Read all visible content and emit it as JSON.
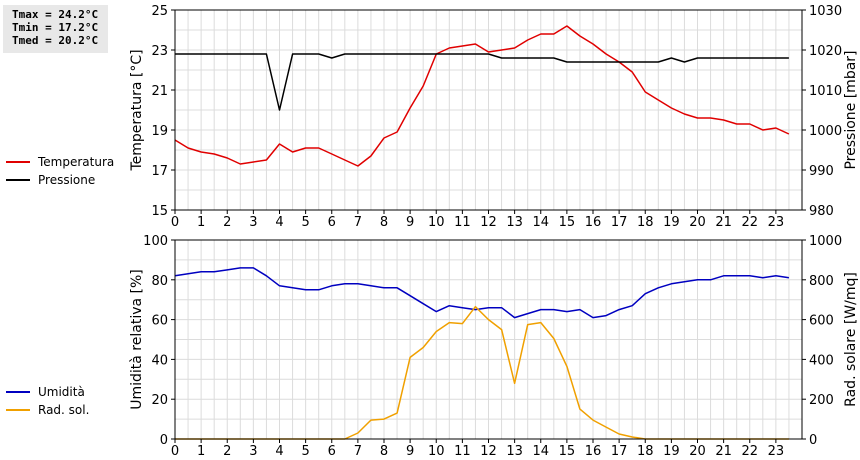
{
  "stats": {
    "tmax": "Tmax = 24.2°C",
    "tmin": "Tmin = 17.2°C",
    "tmed": "Tmed = 20.2°C"
  },
  "chart_data": [
    {
      "type": "line",
      "x_ticks": [
        "0",
        "1",
        "2",
        "3",
        "4",
        "5",
        "6",
        "7",
        "8",
        "9",
        "10",
        "11",
        "12",
        "13",
        "14",
        "15",
        "16",
        "17",
        "18",
        "19",
        "20",
        "21",
        "22",
        "23"
      ],
      "xlim": [
        0,
        24
      ],
      "ylabel_left": "Temperatura [°C]",
      "ylim_left": [
        15,
        25
      ],
      "yticks_left": [
        15,
        17,
        19,
        21,
        23,
        25
      ],
      "ylabel_right": "Pressione [mbar]",
      "ylim_right": [
        980,
        1030
      ],
      "yticks_right": [
        980,
        990,
        1000,
        1010,
        1020,
        1030
      ],
      "grid": true,
      "legend_placement": "left",
      "series": [
        {
          "name": "Temperatura",
          "axis": "left",
          "color": "#e00000",
          "x": [
            0,
            0.5,
            1,
            1.5,
            2,
            2.5,
            3,
            3.5,
            4,
            4.5,
            5,
            5.5,
            6,
            6.5,
            7,
            7.5,
            8,
            8.5,
            9,
            9.5,
            10,
            10.5,
            11,
            11.5,
            12,
            12.5,
            13,
            13.5,
            14,
            14.5,
            15,
            15.5,
            16,
            16.5,
            17,
            17.5,
            18,
            18.5,
            19,
            19.5,
            20,
            20.5,
            21,
            21.5,
            22,
            22.5,
            23,
            23.5
          ],
          "values": [
            18.5,
            18.1,
            17.9,
            17.8,
            17.6,
            17.3,
            17.4,
            17.5,
            18.3,
            17.9,
            18.1,
            18.1,
            17.8,
            17.5,
            17.2,
            17.7,
            18.6,
            18.9,
            20.1,
            21.2,
            22.8,
            23.1,
            23.2,
            23.3,
            22.9,
            23.0,
            23.1,
            23.5,
            23.8,
            23.8,
            24.2,
            23.7,
            23.3,
            22.8,
            22.4,
            21.9,
            20.9,
            20.5,
            20.1,
            19.8,
            19.6,
            19.6,
            19.5,
            19.3,
            19.3,
            19.0,
            19.1,
            18.8
          ]
        },
        {
          "name": "Pressione",
          "axis": "right",
          "color": "#000000",
          "x": [
            0,
            0.5,
            1,
            1.5,
            2,
            2.5,
            3,
            3.5,
            4,
            4.5,
            5,
            5.5,
            6,
            6.5,
            7,
            7.5,
            8,
            8.5,
            9,
            9.5,
            10,
            10.5,
            11,
            11.5,
            12,
            12.5,
            13,
            13.5,
            14,
            14.5,
            15,
            15.5,
            16,
            16.5,
            17,
            17.5,
            18,
            18.5,
            19,
            19.5,
            20,
            20.5,
            21,
            21.5,
            22,
            22.5,
            23,
            23.5
          ],
          "values": [
            1019,
            1019,
            1019,
            1019,
            1019,
            1019,
            1019,
            1019,
            1005,
            1019,
            1019,
            1019,
            1018,
            1019,
            1019,
            1019,
            1019,
            1019,
            1019,
            1019,
            1019,
            1019,
            1019,
            1019,
            1019,
            1018,
            1018,
            1018,
            1018,
            1018,
            1017,
            1017,
            1017,
            1017,
            1017,
            1017,
            1017,
            1017,
            1018,
            1017,
            1018,
            1018,
            1018,
            1018,
            1018,
            1018,
            1018,
            1018
          ]
        }
      ]
    },
    {
      "type": "line",
      "x_ticks": [
        "0",
        "1",
        "2",
        "3",
        "4",
        "5",
        "6",
        "7",
        "8",
        "9",
        "10",
        "11",
        "12",
        "13",
        "14",
        "15",
        "16",
        "17",
        "18",
        "19",
        "20",
        "21",
        "22",
        "23"
      ],
      "xlim": [
        0,
        24
      ],
      "ylabel_left": "Umidità relativa [%]",
      "ylim_left": [
        0,
        100
      ],
      "yticks_left": [
        0,
        20,
        40,
        60,
        80,
        100
      ],
      "ylabel_right": "Rad. solare [W/mq]",
      "ylim_right": [
        0,
        1000
      ],
      "yticks_right": [
        0,
        200,
        400,
        600,
        800,
        1000
      ],
      "grid": true,
      "legend_placement": "left",
      "series": [
        {
          "name": "Umidità",
          "axis": "left",
          "color": "#0000c0",
          "x": [
            0,
            0.5,
            1,
            1.5,
            2,
            2.5,
            3,
            3.5,
            4,
            4.5,
            5,
            5.5,
            6,
            6.5,
            7,
            7.5,
            8,
            8.5,
            9,
            9.5,
            10,
            10.5,
            11,
            11.5,
            12,
            12.5,
            13,
            13.5,
            14,
            14.5,
            15,
            15.5,
            16,
            16.5,
            17,
            17.5,
            18,
            18.5,
            19,
            19.5,
            20,
            20.5,
            21,
            21.5,
            22,
            22.5,
            23,
            23.5
          ],
          "values": [
            82,
            83,
            84,
            84,
            85,
            86,
            86,
            82,
            77,
            76,
            75,
            75,
            77,
            78,
            78,
            77,
            76,
            76,
            72,
            68,
            64,
            67,
            66,
            65,
            66,
            66,
            61,
            63,
            65,
            65,
            64,
            65,
            61,
            62,
            65,
            67,
            73,
            76,
            78,
            79,
            80,
            80,
            82,
            82,
            82,
            81,
            82,
            81
          ]
        },
        {
          "name": "Rad. sol.",
          "axis": "right",
          "color": "#f0a000",
          "x": [
            0,
            0.5,
            1,
            1.5,
            2,
            2.5,
            3,
            3.5,
            4,
            4.5,
            5,
            5.5,
            6,
            6.5,
            7,
            7.5,
            8,
            8.5,
            9,
            9.5,
            10,
            10.5,
            11,
            11.5,
            12,
            12.5,
            13,
            13.5,
            14,
            14.5,
            15,
            15.5,
            16,
            16.5,
            17,
            17.5,
            18,
            18.5,
            19,
            19.5,
            20,
            20.5,
            21,
            21.5,
            22,
            22.5,
            23,
            23.5
          ],
          "values": [
            0,
            0,
            0,
            0,
            0,
            0,
            0,
            0,
            0,
            0,
            0,
            0,
            0,
            0,
            30,
            95,
            100,
            130,
            410,
            460,
            540,
            585,
            580,
            665,
            600,
            550,
            280,
            575,
            585,
            505,
            365,
            150,
            95,
            60,
            25,
            10,
            0,
            0,
            0,
            0,
            0,
            0,
            0,
            0,
            0,
            0,
            0,
            0
          ]
        }
      ]
    }
  ]
}
